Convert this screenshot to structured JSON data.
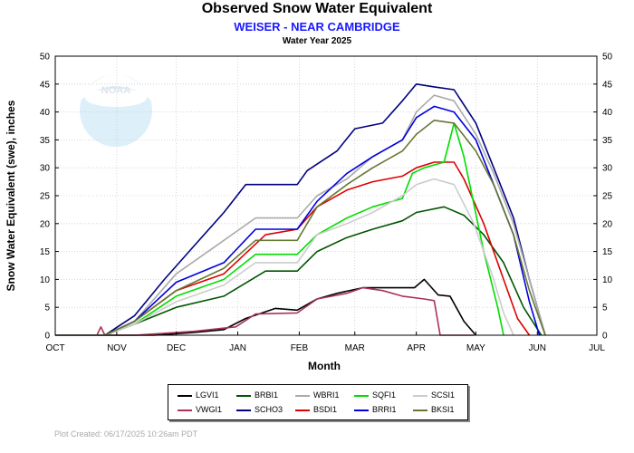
{
  "header": {
    "title": "Observed Snow Water Equivalent",
    "subtitle": "WEISER - NEAR CAMBRIDGE",
    "subsubtitle": "Water Year 2025"
  },
  "logo": {
    "text": "NOAA",
    "icon": "noaa-logo"
  },
  "footer": {
    "credit": "Plot Created:  06/17/2025 10:26am PDT"
  },
  "chart_data": {
    "type": "line",
    "title": "Observed Snow Water Equivalent",
    "xlabel": "Month",
    "ylabel": "Snow Water Equivalent (swe),  inches",
    "ylim": [
      0,
      50
    ],
    "yticks": [
      0,
      5,
      10,
      15,
      20,
      25,
      30,
      35,
      40,
      45,
      50
    ],
    "xlim": [
      "2024-10-01",
      "2025-07-01"
    ],
    "xticks": [
      {
        "date": "2024-10-01",
        "label": "OCT"
      },
      {
        "date": "2024-11-01",
        "label": "NOV"
      },
      {
        "date": "2024-12-01",
        "label": "DEC"
      },
      {
        "date": "2025-01-01",
        "label": "JAN"
      },
      {
        "date": "2025-02-01",
        "label": "FEB"
      },
      {
        "date": "2025-03-01",
        "label": "MAR"
      },
      {
        "date": "2025-04-01",
        "label": "APR"
      },
      {
        "date": "2025-05-01",
        "label": "MAY"
      },
      {
        "date": "2025-06-01",
        "label": "JUN"
      },
      {
        "date": "2025-07-01",
        "label": "JUL"
      }
    ],
    "grid": true,
    "legend_position": "bottom",
    "series": [
      {
        "name": "LGVI1",
        "color": "#000000",
        "x": [
          "2024-10-01",
          "2024-11-20",
          "2024-12-10",
          "2024-12-25",
          "2025-01-05",
          "2025-01-20",
          "2025-01-31",
          "2025-02-10",
          "2025-02-20",
          "2025-03-05",
          "2025-03-20",
          "2025-03-31",
          "2025-04-05",
          "2025-04-12",
          "2025-04-18",
          "2025-04-25",
          "2025-05-01"
        ],
        "y": [
          0,
          0,
          0.5,
          1,
          3,
          4.8,
          4.5,
          6.5,
          7.5,
          8.5,
          8.5,
          8.5,
          10,
          7.2,
          7,
          2.5,
          0
        ]
      },
      {
        "name": "VWGI1",
        "color": "#aa3355",
        "x": [
          "2024-10-01",
          "2024-10-22",
          "2024-10-24",
          "2024-10-26",
          "2024-11-10",
          "2024-12-10",
          "2024-12-31",
          "2025-01-10",
          "2025-01-31",
          "2025-02-10",
          "2025-02-25",
          "2025-03-05",
          "2025-03-15",
          "2025-03-25",
          "2025-04-05",
          "2025-04-10",
          "2025-04-13",
          "2025-04-20",
          "2025-04-30"
        ],
        "y": [
          0,
          0,
          1.5,
          0,
          0,
          0.7,
          1.5,
          3.8,
          4,
          6.5,
          7.5,
          8.5,
          8,
          7,
          6.5,
          6.2,
          0,
          0,
          0
        ]
      },
      {
        "name": "BRBI1",
        "color": "#005500",
        "x": [
          "2024-10-01",
          "2024-10-26",
          "2024-11-10",
          "2024-12-01",
          "2024-12-25",
          "2025-01-15",
          "2025-01-31",
          "2025-02-10",
          "2025-02-25",
          "2025-03-10",
          "2025-03-25",
          "2025-04-01",
          "2025-04-15",
          "2025-04-25",
          "2025-05-05",
          "2025-05-15",
          "2025-05-25",
          "2025-06-03"
        ],
        "y": [
          0,
          0,
          2,
          5,
          7,
          11.5,
          11.5,
          15,
          17.5,
          19,
          20.5,
          22,
          23,
          21.5,
          18,
          13,
          5,
          0
        ]
      },
      {
        "name": "SCHO3",
        "color": "#000080",
        "x": [
          "2024-10-01",
          "2024-10-26",
          "2024-11-10",
          "2024-11-25",
          "2024-12-10",
          "2024-12-25",
          "2025-01-05",
          "2025-01-31",
          "2025-02-05",
          "2025-02-20",
          "2025-03-01",
          "2025-03-15",
          "2025-03-25",
          "2025-04-01",
          "2025-04-10",
          "2025-04-20",
          "2025-05-01",
          "2025-05-10",
          "2025-05-20",
          "2025-05-28",
          "2025-06-05"
        ],
        "y": [
          0,
          0,
          3.5,
          10,
          16,
          22,
          27,
          27,
          29.5,
          33,
          37,
          38,
          42,
          45,
          44.5,
          44,
          38,
          30,
          21,
          10,
          0
        ]
      },
      {
        "name": "WBRI1",
        "color": "#aaaaaa",
        "x": [
          "2024-10-01",
          "2024-10-26",
          "2024-11-10",
          "2024-12-01",
          "2024-12-25",
          "2025-01-10",
          "2025-01-31",
          "2025-02-10",
          "2025-02-25",
          "2025-03-10",
          "2025-03-25",
          "2025-04-01",
          "2025-04-10",
          "2025-04-20",
          "2025-05-01",
          "2025-05-10",
          "2025-05-20",
          "2025-05-28",
          "2025-06-05"
        ],
        "y": [
          0,
          0,
          2.5,
          11,
          17,
          21,
          21,
          25,
          28,
          32,
          35,
          40,
          43,
          42,
          36,
          29,
          20,
          10,
          0
        ]
      },
      {
        "name": "BSDI1",
        "color": "#dd0000",
        "x": [
          "2024-10-01",
          "2024-10-26",
          "2024-11-10",
          "2024-12-01",
          "2024-12-25",
          "2025-01-15",
          "2025-01-31",
          "2025-02-10",
          "2025-02-25",
          "2025-03-10",
          "2025-03-25",
          "2025-04-01",
          "2025-04-10",
          "2025-04-20",
          "2025-04-25",
          "2025-05-05",
          "2025-05-15",
          "2025-05-22",
          "2025-05-28"
        ],
        "y": [
          0,
          0,
          2.5,
          8,
          11,
          18,
          19,
          23,
          26,
          27.5,
          28.5,
          30,
          31,
          31,
          28,
          20,
          10,
          3,
          0
        ]
      },
      {
        "name": "SQFI1",
        "color": "#00dd00",
        "x": [
          "2024-10-01",
          "2024-10-26",
          "2024-11-10",
          "2024-12-01",
          "2024-12-25",
          "2025-01-10",
          "2025-01-31",
          "2025-02-10",
          "2025-02-25",
          "2025-03-10",
          "2025-03-25",
          "2025-03-30",
          "2025-04-05",
          "2025-04-15",
          "2025-04-20",
          "2025-04-25",
          "2025-05-05",
          "2025-05-12",
          "2025-05-15"
        ],
        "y": [
          0,
          0,
          2,
          7,
          10,
          14.5,
          14.5,
          18,
          21,
          23,
          24.5,
          29,
          30,
          31,
          38,
          32,
          15,
          5,
          0
        ]
      },
      {
        "name": "BRRI1",
        "color": "#0000dd",
        "x": [
          "2024-10-01",
          "2024-10-26",
          "2024-11-10",
          "2024-12-01",
          "2024-12-25",
          "2025-01-10",
          "2025-01-31",
          "2025-02-10",
          "2025-02-25",
          "2025-03-10",
          "2025-03-25",
          "2025-04-01",
          "2025-04-10",
          "2025-04-20",
          "2025-05-01",
          "2025-05-10",
          "2025-05-20",
          "2025-05-28",
          "2025-06-02"
        ],
        "y": [
          0,
          0,
          2.5,
          9.5,
          13,
          19,
          19,
          24,
          29,
          32,
          35,
          39,
          41,
          40,
          35,
          27,
          18,
          6,
          0
        ]
      },
      {
        "name": "SCSI1",
        "color": "#cccccc",
        "x": [
          "2024-10-01",
          "2024-10-26",
          "2024-11-10",
          "2024-12-01",
          "2024-12-25",
          "2025-01-10",
          "2025-01-31",
          "2025-02-10",
          "2025-02-25",
          "2025-03-10",
          "2025-03-25",
          "2025-04-01",
          "2025-04-10",
          "2025-04-20",
          "2025-04-30",
          "2025-05-10",
          "2025-05-15",
          "2025-05-20"
        ],
        "y": [
          0,
          0,
          2,
          6,
          9,
          13,
          13,
          18,
          20,
          22,
          25,
          27,
          28,
          27,
          20,
          10,
          4,
          0
        ]
      },
      {
        "name": "BKSI1",
        "color": "#667733",
        "x": [
          "2024-10-01",
          "2024-10-26",
          "2024-11-10",
          "2024-12-01",
          "2024-12-25",
          "2025-01-10",
          "2025-01-31",
          "2025-02-10",
          "2025-02-25",
          "2025-03-10",
          "2025-03-25",
          "2025-04-01",
          "2025-04-10",
          "2025-04-20",
          "2025-05-01",
          "2025-05-10",
          "2025-05-20",
          "2025-05-28",
          "2025-06-05"
        ],
        "y": [
          0,
          0,
          2.5,
          8,
          12,
          17,
          17,
          23,
          27,
          30,
          33,
          36,
          38.5,
          38,
          33,
          27,
          18,
          8,
          0
        ]
      }
    ]
  }
}
